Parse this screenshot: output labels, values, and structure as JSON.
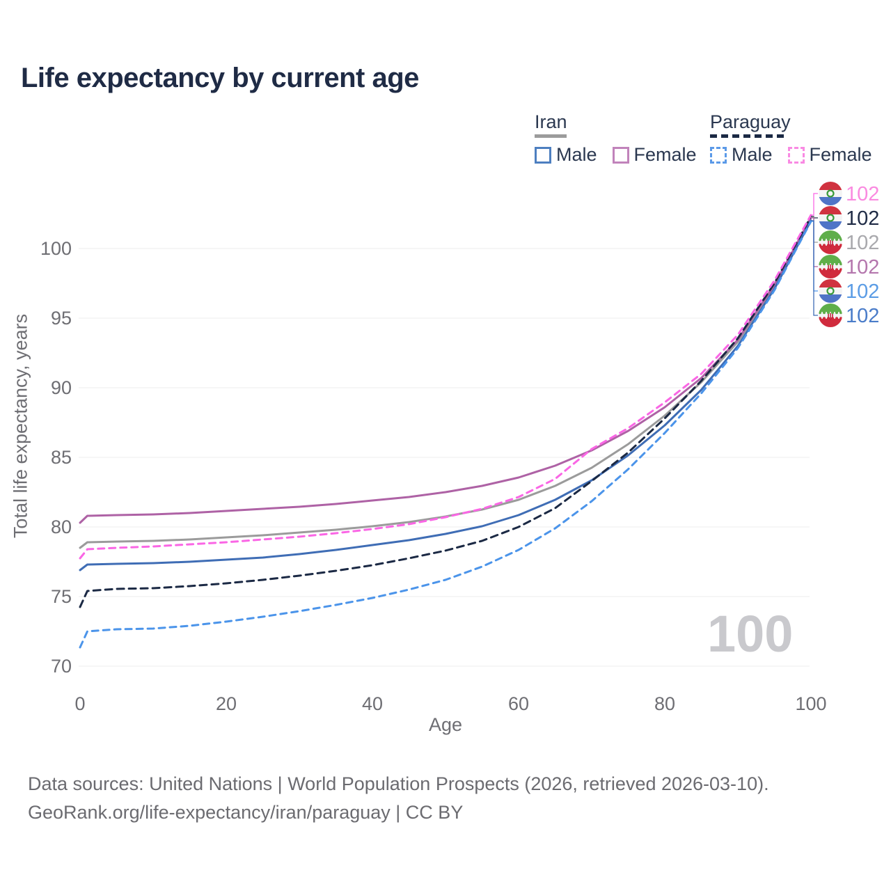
{
  "title": "Life expectancy by current age",
  "legend": {
    "groups": [
      {
        "title": "Iran",
        "underline_style": "solid",
        "underline_color": "#9b9b9b",
        "items": [
          {
            "label": "Male",
            "swatch": "iran-male",
            "color": "#4d7fc0",
            "dashed": false
          },
          {
            "label": "Female",
            "swatch": "iran-female",
            "color": "#c183bb",
            "dashed": false
          }
        ]
      },
      {
        "title": "Paraguay",
        "underline_style": "dashed",
        "underline_color": "#1b2944",
        "items": [
          {
            "label": "Male",
            "swatch": "py-male",
            "color": "#5b9ae8",
            "dashed": true
          },
          {
            "label": "Female",
            "swatch": "py-female",
            "color": "#f98ae3",
            "dashed": true
          }
        ]
      }
    ]
  },
  "watermark": "100",
  "footer": {
    "line1": "Data sources: United Nations | World Population Prospects (2026, retrieved 2026-03-10).",
    "line2": "GeoRank.org/life-expectancy/iran/paraguay | CC BY"
  },
  "chart_data": {
    "type": "line",
    "title": "Life expectancy by current age",
    "xlabel": "Age",
    "ylabel": "Total life expectancy, years",
    "xlim": [
      0,
      100
    ],
    "ylim": [
      70,
      103
    ],
    "xticks": [
      0,
      20,
      40,
      60,
      80,
      100
    ],
    "yticks": [
      70,
      75,
      80,
      85,
      90,
      95,
      100
    ],
    "grid": true,
    "legend_position": "top-right",
    "x": [
      0,
      1,
      5,
      10,
      15,
      20,
      25,
      30,
      35,
      40,
      45,
      50,
      55,
      60,
      65,
      70,
      75,
      80,
      85,
      90,
      95,
      100
    ],
    "series": [
      {
        "name": "Iran Total",
        "color": "#9b9b9b",
        "dash": null,
        "values": [
          78.5,
          78.9,
          78.95,
          79.0,
          79.1,
          79.25,
          79.4,
          79.6,
          79.8,
          80.05,
          80.35,
          80.75,
          81.25,
          81.95,
          82.95,
          84.25,
          85.95,
          88.0,
          90.4,
          93.3,
          97.3,
          102.25
        ]
      },
      {
        "name": "Iran Female",
        "color": "#ae62a5",
        "dash": null,
        "values": [
          80.3,
          80.8,
          80.85,
          80.9,
          81.0,
          81.15,
          81.3,
          81.45,
          81.65,
          81.9,
          82.15,
          82.5,
          82.95,
          83.55,
          84.4,
          85.5,
          86.9,
          88.6,
          90.7,
          93.45,
          97.4,
          102.2
        ]
      },
      {
        "name": "Iran Male",
        "color": "#3f6db5",
        "dash": null,
        "values": [
          76.9,
          77.3,
          77.35,
          77.4,
          77.5,
          77.65,
          77.8,
          78.05,
          78.35,
          78.7,
          79.05,
          79.5,
          80.05,
          80.85,
          81.95,
          83.35,
          85.15,
          87.3,
          89.85,
          93.0,
          97.1,
          102.0
        ]
      },
      {
        "name": "Paraguay Total",
        "color": "#1b2944",
        "dash": "10 7",
        "values": [
          74.25,
          75.4,
          75.55,
          75.6,
          75.75,
          75.95,
          76.2,
          76.5,
          76.85,
          77.25,
          77.75,
          78.3,
          79.0,
          80.0,
          81.35,
          83.3,
          85.35,
          87.8,
          90.5,
          93.55,
          97.5,
          102.3
        ]
      },
      {
        "name": "Paraguay Female",
        "color": "#fa66e5",
        "dash": "9 7",
        "values": [
          77.75,
          78.4,
          78.5,
          78.6,
          78.75,
          78.9,
          79.1,
          79.3,
          79.55,
          79.85,
          80.2,
          80.7,
          81.3,
          82.15,
          83.45,
          85.6,
          87.1,
          88.95,
          91.0,
          93.8,
          97.7,
          102.4
        ]
      },
      {
        "name": "Paraguay Male",
        "color": "#4b94ea",
        "dash": "9 7",
        "values": [
          71.35,
          72.5,
          72.65,
          72.7,
          72.9,
          73.2,
          73.55,
          73.95,
          74.4,
          74.9,
          75.5,
          76.2,
          77.15,
          78.35,
          79.9,
          81.85,
          84.15,
          86.75,
          89.6,
          92.85,
          97.0,
          101.95
        ]
      }
    ],
    "end_labels": [
      {
        "text": "102",
        "color": "#fa8ae0",
        "flag": "paraguay",
        "series_index": 4
      },
      {
        "text": "102",
        "color": "#1f2b45",
        "flag": "paraguay",
        "series_index": 3
      },
      {
        "text": "102",
        "color": "#a9a9ad",
        "flag": "iran",
        "series_index": 0
      },
      {
        "text": "102",
        "color": "#b476ad",
        "flag": "iran",
        "series_index": 1
      },
      {
        "text": "102",
        "color": "#5b9ce5",
        "flag": "paraguay",
        "series_index": 5
      },
      {
        "text": "102",
        "color": "#4a7cc9",
        "flag": "iran",
        "series_index": 2
      }
    ]
  }
}
